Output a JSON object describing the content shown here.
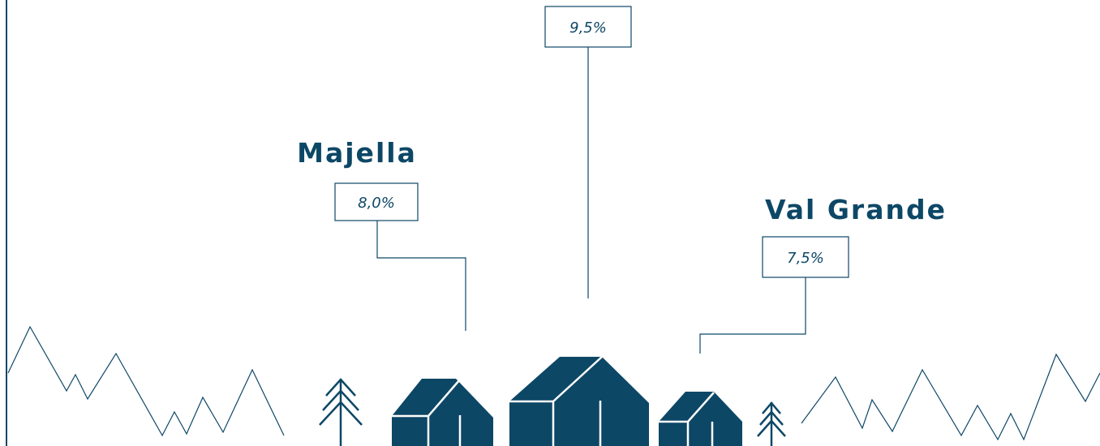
{
  "items": [
    {
      "name": "Majella",
      "value": "8,0%"
    },
    {
      "value": "9,5%"
    },
    {
      "name": "Val Grande",
      "value": "7,5%"
    }
  ]
}
